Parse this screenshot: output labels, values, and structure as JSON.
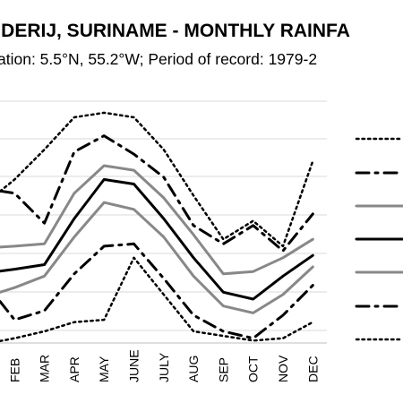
{
  "chart_data": {
    "type": "line",
    "title": "NDERIJ, SURINAME - MONTHLY RAINFA",
    "subtitle": "ation: 5.5°N, 55.2°W; Period of record: 1979-2",
    "categories": [
      "FEB",
      "MAR",
      "APR",
      "MAY",
      "JUNE",
      "JULY",
      "AUG",
      "SEP",
      "OCT",
      "NOV",
      "DEC"
    ],
    "x_first_offset": 1,
    "ylim": [
      0,
      100
    ],
    "grid": true,
    "legend": "right",
    "series": [
      {
        "style": "dotted",
        "color": "#000000",
        "width": 2.5,
        "values": [
          66,
          79,
          93,
          95,
          93,
          79,
          59,
          40,
          48,
          37,
          74
        ]
      },
      {
        "style": "dashdot",
        "color": "#000000",
        "width": 3,
        "lead": 1,
        "values": [
          60,
          47,
          78,
          85,
          77,
          67,
          46,
          38,
          46,
          35,
          51
        ]
      },
      {
        "style": "solid",
        "color": "#888888",
        "width": 3,
        "values": [
          37,
          38,
          60,
          72,
          70,
          58,
          42,
          25,
          26,
          32,
          40
        ]
      },
      {
        "style": "solid",
        "color": "#000000",
        "width": 3,
        "values": [
          27,
          29,
          49,
          66,
          64,
          49,
          32,
          17,
          14,
          24,
          33
        ]
      },
      {
        "style": "solid",
        "color": "#888888",
        "width": 3,
        "values": [
          19,
          24,
          41,
          56,
          53,
          41,
          24,
          11,
          8,
          16,
          28
        ]
      },
      {
        "style": "dashdot",
        "color": "#000000",
        "width": 3,
        "lead": 8,
        "values": [
          5,
          9,
          25,
          37,
          38,
          23,
          7,
          0,
          -3,
          7,
          20
        ]
      },
      {
        "style": "dotted",
        "color": "#000000",
        "width": 2.5,
        "values": [
          -3,
          0,
          4,
          5,
          32,
          16,
          0,
          -2,
          -4,
          -3,
          4
        ]
      }
    ]
  }
}
